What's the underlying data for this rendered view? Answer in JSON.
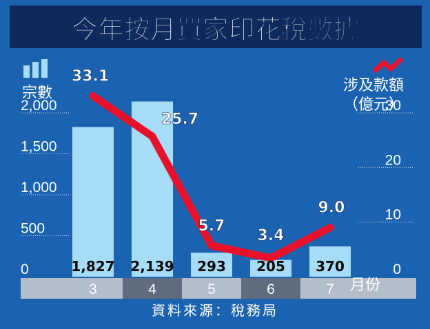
{
  "title": "今年按月買家印花稅數據",
  "source": "資料來源：稅務局",
  "colors": {
    "background": "#1b63b0",
    "bar": "#a7dcf7",
    "line": "#e8102a",
    "title_bg": "#0e2a5c",
    "axis_band_light": "#b4bdca",
    "axis_band_dark": "#5f6b7f"
  },
  "icons": {
    "bars": "bar-chart-icon",
    "line": "line-trend-icon"
  },
  "chart_data": {
    "type": "bar",
    "categories": [
      "3",
      "4",
      "5",
      "6",
      "7"
    ],
    "xlabel": "月份",
    "series": [
      {
        "type": "bar",
        "axis": "left",
        "values": [
          1827,
          2139,
          293,
          205,
          370
        ],
        "labels": [
          "1,827",
          "2,139",
          "293",
          "205",
          "370"
        ]
      },
      {
        "type": "line",
        "axis": "right",
        "values": [
          33.1,
          25.7,
          5.7,
          3.4,
          9.0
        ],
        "labels": [
          "33.1",
          "25.7",
          "5.7",
          "3.4",
          "9.0"
        ]
      }
    ],
    "left_axis": {
      "label": "宗數",
      "ylim": [
        0,
        2000
      ],
      "ticks": [
        0,
        500,
        1000,
        1500,
        2000
      ],
      "tick_labels": [
        "0",
        "500",
        "1,000",
        "1,500",
        "2,000"
      ]
    },
    "right_axis": {
      "label_line1": "涉及款額",
      "label_line2": "（億元）",
      "ylim": [
        0,
        30
      ],
      "ticks": [
        0,
        10,
        20,
        30
      ],
      "tick_labels": [
        "0",
        "10",
        "20",
        "30"
      ]
    },
    "grid": true
  }
}
